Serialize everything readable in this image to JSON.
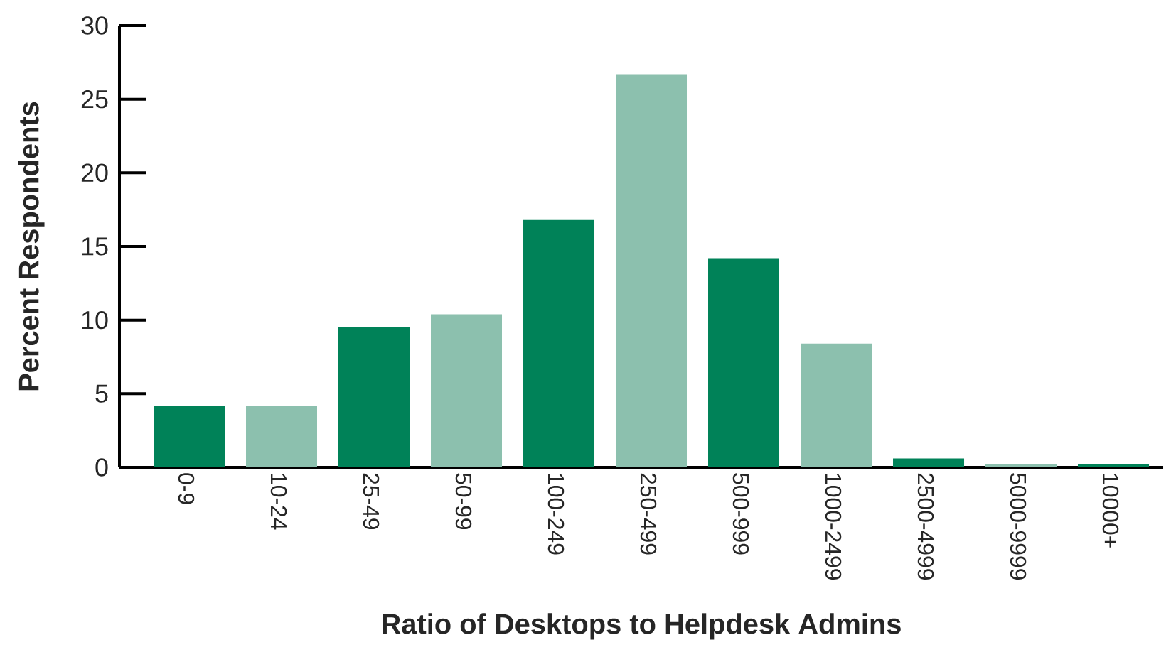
{
  "chart_data": {
    "type": "bar",
    "xlabel": "Ratio of Desktops to Helpdesk Admins",
    "ylabel": "Percent Respondents",
    "categories": [
      "0-9",
      "10-24",
      "25-49",
      "50-99",
      "100-249",
      "250-499",
      "500-999",
      "1000-2499",
      "2500-4999",
      "5000-9999",
      "10000+"
    ],
    "values": [
      4.2,
      4.2,
      9.5,
      10.4,
      16.8,
      26.7,
      14.2,
      8.4,
      0.6,
      0.2,
      0.2
    ],
    "colors": [
      "#008258",
      "#8cc0ae",
      "#008258",
      "#8cc0ae",
      "#008258",
      "#8cc0ae",
      "#008258",
      "#8cc0ae",
      "#008258",
      "#8cc0ae",
      "#008258"
    ],
    "ylim": [
      0,
      30
    ],
    "yticks": [
      0,
      5,
      10,
      15,
      20,
      25,
      30
    ]
  }
}
